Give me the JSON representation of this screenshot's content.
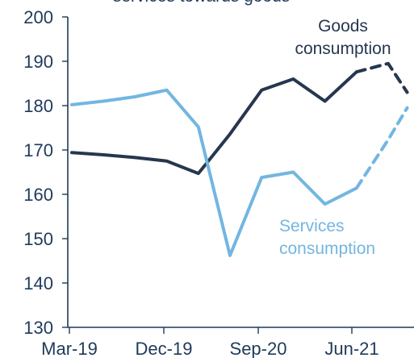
{
  "chart_data": {
    "type": "line",
    "title_fragment": "services towards goods -",
    "x_labels": [
      "Mar-19",
      "Dec-19",
      "Sep-20",
      "Jun-21"
    ],
    "y_ticks": [
      130,
      140,
      150,
      160,
      170,
      180,
      190,
      200
    ],
    "ylim": [
      130,
      200
    ],
    "grid": false,
    "colors": {
      "goods": "#26374f",
      "services": "#73b6e0",
      "axis": "#1f3a5a"
    },
    "series": [
      {
        "name": "Goods consumption",
        "label_lines": [
          "Goods",
          "consumption"
        ],
        "solid_points": [
          {
            "x": 0,
            "y": 169.4
          },
          {
            "x": 1,
            "y": 168.9
          },
          {
            "x": 2,
            "y": 168.3
          },
          {
            "x": 3,
            "y": 167.5
          },
          {
            "x": 4,
            "y": 164.7
          },
          {
            "x": 5,
            "y": 173.6
          },
          {
            "x": 6,
            "y": 183.5
          },
          {
            "x": 7,
            "y": 186.0
          },
          {
            "x": 8,
            "y": 181.0
          },
          {
            "x": 9,
            "y": 187.6
          }
        ],
        "forecast_points": [
          {
            "x": 9,
            "y": 187.6
          },
          {
            "x": 10,
            "y": 189.5
          },
          {
            "x": 10.6,
            "y": 183.0
          }
        ]
      },
      {
        "name": "Services consumption",
        "label_lines": [
          "Services",
          "consumption"
        ],
        "solid_points": [
          {
            "x": 0,
            "y": 180.2
          },
          {
            "x": 1,
            "y": 181.0
          },
          {
            "x": 2,
            "y": 182.0
          },
          {
            "x": 3,
            "y": 183.5
          },
          {
            "x": 4,
            "y": 175.2
          },
          {
            "x": 5,
            "y": 146.2
          },
          {
            "x": 6,
            "y": 163.8
          },
          {
            "x": 7,
            "y": 165.0
          },
          {
            "x": 8,
            "y": 157.8
          },
          {
            "x": 9,
            "y": 161.4
          }
        ],
        "forecast_points": [
          {
            "x": 9,
            "y": 161.4
          },
          {
            "x": 10,
            "y": 172.3
          },
          {
            "x": 10.6,
            "y": 179.5
          }
        ]
      }
    ]
  }
}
